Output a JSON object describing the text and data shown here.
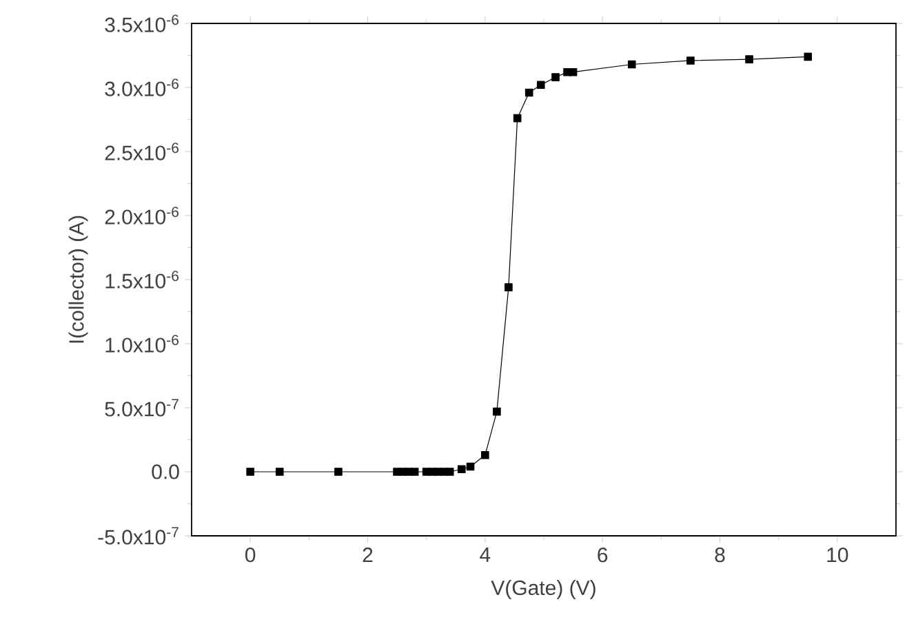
{
  "chart_data": {
    "type": "line",
    "xlabel": "V(Gate) (V)",
    "ylabel": "I(collector) (A)",
    "x": [
      0,
      0.5,
      1.5,
      2.5,
      2.6,
      2.7,
      2.8,
      3.0,
      3.1,
      3.2,
      3.3,
      3.4,
      3.6,
      3.75,
      4.0,
      4.2,
      4.4,
      4.55,
      4.75,
      4.95,
      5.2,
      5.4,
      5.5,
      6.5,
      7.5,
      8.5,
      9.5
    ],
    "series": [
      {
        "color": "#000000",
        "values": [
          0,
          0,
          0,
          0,
          0,
          0,
          0,
          0,
          0,
          0,
          0,
          0,
          2e-08,
          4e-08,
          1.3e-07,
          4.7e-07,
          1.44e-06,
          2.76e-06,
          2.96e-06,
          3.02e-06,
          3.08e-06,
          3.12e-06,
          3.12e-06,
          3.18e-06,
          3.21e-06,
          3.22e-06,
          3.24e-06
        ]
      }
    ],
    "xlim": [
      -1,
      11
    ],
    "xticks": [
      0,
      2,
      4,
      6,
      8,
      10
    ],
    "ylim": [
      -5e-07,
      3.5e-06
    ],
    "yticks": [
      {
        "value": -5e-07,
        "label": "-5.0x10$^{-7}$"
      },
      {
        "value": 0,
        "label": "0.0"
      },
      {
        "value": 5e-07,
        "label": "5.0x10$^{-7}$"
      },
      {
        "value": 1e-06,
        "label": "1.0x10$^{-6}$"
      },
      {
        "value": 1.5e-06,
        "label": "1.5x10$^{-6}$"
      },
      {
        "value": 2e-06,
        "label": "2.0x10$^{-6}$"
      },
      {
        "value": 2.5e-06,
        "label": "2.5x10$^{-6}$"
      },
      {
        "value": 3e-06,
        "label": "3.0x10$^{-6}$"
      },
      {
        "value": 3.5e-06,
        "label": "3.5x10$^{-6}$"
      }
    ],
    "marker": "square",
    "line_style": "solid",
    "grid": false
  }
}
